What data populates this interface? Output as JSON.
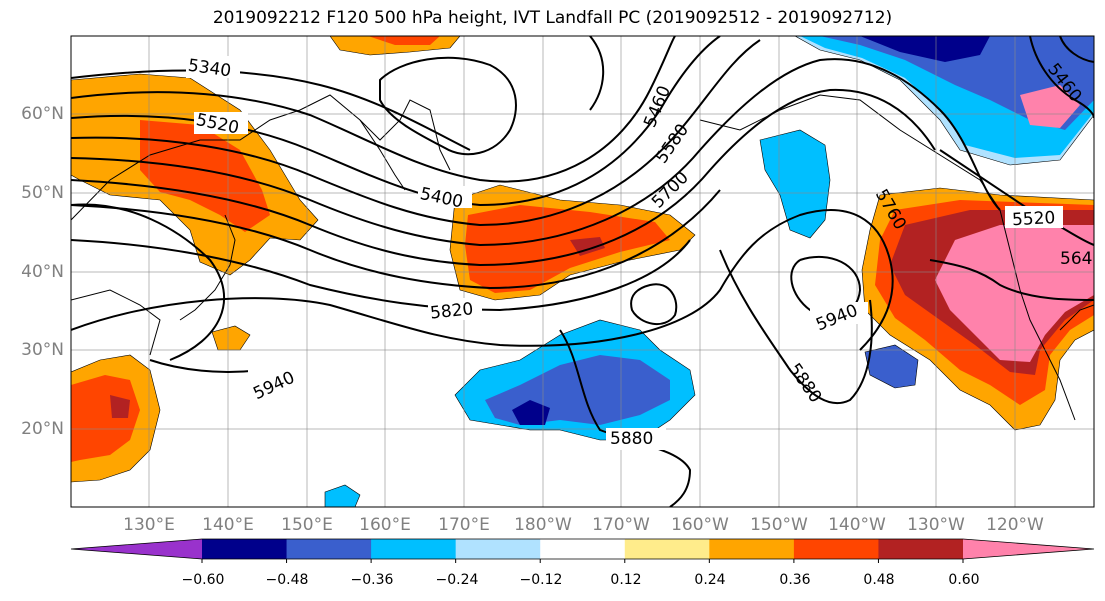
{
  "title": "2019092212 F120 500 hPa height, IVT Landfall PC (2019092512 - 2019092712)",
  "lat_labels": [
    "60°N",
    "50°N",
    "40°N",
    "30°N",
    "20°N"
  ],
  "lon_labels": [
    "130°E",
    "140°E",
    "150°E",
    "160°E",
    "170°E",
    "180°W",
    "170°W",
    "160°W",
    "150°W",
    "140°W",
    "130°W",
    "120°W"
  ],
  "contour_labels": [
    "5340",
    "5520",
    "5400",
    "5820",
    "5940",
    "5460",
    "5580",
    "5700",
    "5760",
    "5520",
    "5940",
    "5880",
    "5880",
    "5460",
    "564"
  ],
  "colorbar": {
    "colors": [
      "#9932cc",
      "#00008b",
      "#3a5fcd",
      "#00bfff",
      "#b0e2ff",
      "#ffffff",
      "#ffec8b",
      "#ffa500",
      "#ff4500",
      "#b22222",
      "#ff82ab"
    ],
    "tick_labels": [
      "−0.60",
      "−0.48",
      "−0.36",
      "−0.24",
      "−0.12",
      "0.12",
      "0.24",
      "0.36",
      "0.48",
      "0.60"
    ]
  }
}
